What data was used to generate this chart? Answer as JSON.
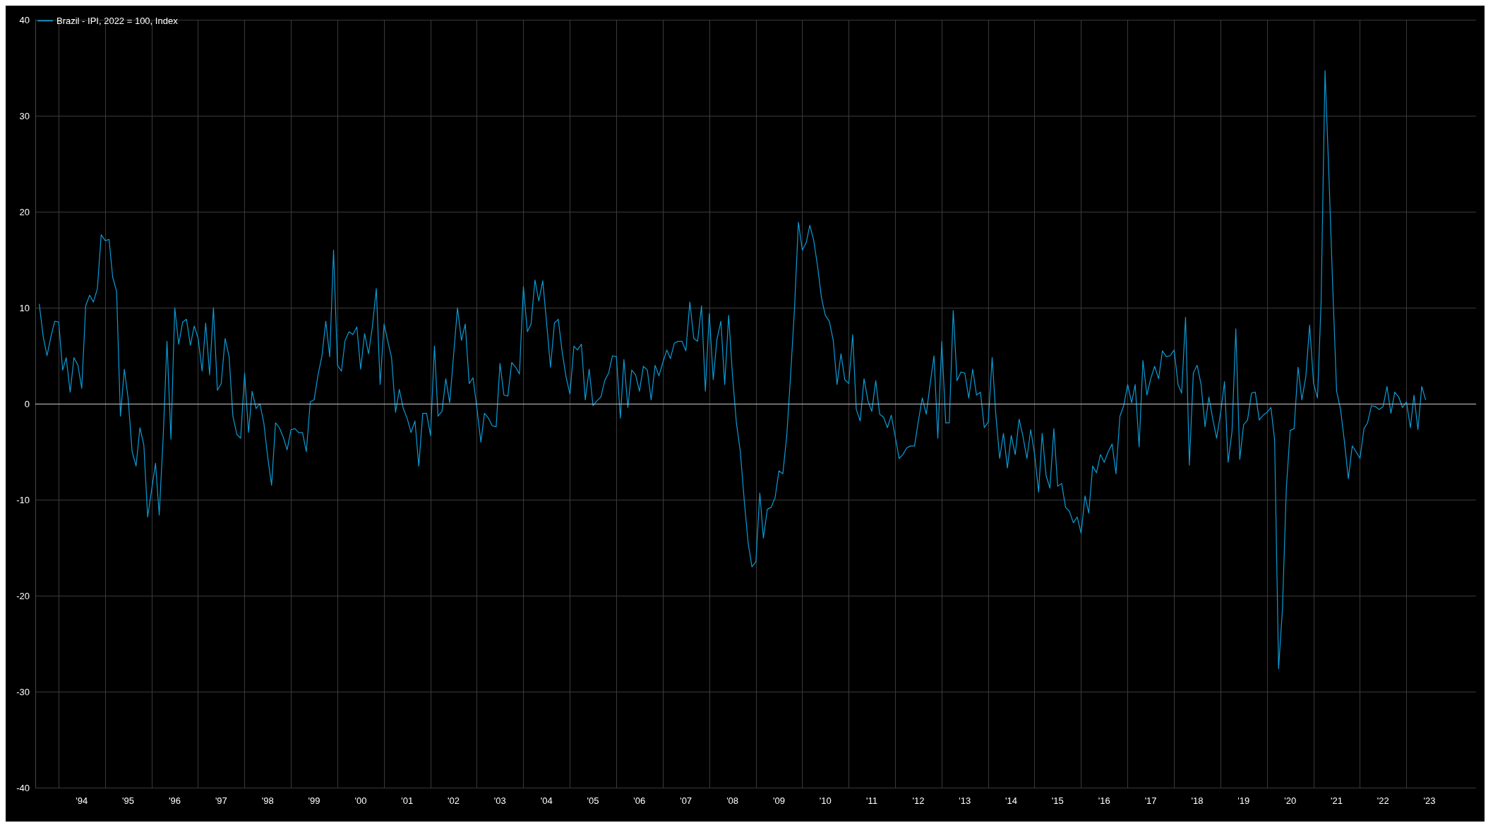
{
  "chart_data": {
    "type": "line",
    "xlim": [
      "1993-07",
      "2024-07"
    ],
    "ylim": [
      -40,
      40
    ],
    "yticks": [
      -40,
      -30,
      -20,
      -10,
      0,
      10,
      20,
      30,
      40
    ],
    "xticks": [
      {
        "value": "1994-01",
        "label": null
      },
      {
        "value": "1994-07",
        "label": "'94"
      },
      {
        "value": "1995-01",
        "label": null
      },
      {
        "value": "1995-07",
        "label": "'95"
      },
      {
        "value": "1996-01",
        "label": null
      },
      {
        "value": "1996-07",
        "label": "'96"
      },
      {
        "value": "1997-01",
        "label": null
      },
      {
        "value": "1997-07",
        "label": "'97"
      },
      {
        "value": "1998-01",
        "label": null
      },
      {
        "value": "1998-07",
        "label": "'98"
      },
      {
        "value": "1999-01",
        "label": null
      },
      {
        "value": "1999-07",
        "label": "'99"
      },
      {
        "value": "2000-01",
        "label": null
      },
      {
        "value": "2000-07",
        "label": "'00"
      },
      {
        "value": "2001-01",
        "label": null
      },
      {
        "value": "2001-07",
        "label": "'01"
      },
      {
        "value": "2002-01",
        "label": null
      },
      {
        "value": "2002-07",
        "label": "'02"
      },
      {
        "value": "2003-01",
        "label": null
      },
      {
        "value": "2003-07",
        "label": "'03"
      },
      {
        "value": "2004-01",
        "label": null
      },
      {
        "value": "2004-07",
        "label": "'04"
      },
      {
        "value": "2005-01",
        "label": null
      },
      {
        "value": "2005-07",
        "label": "'05"
      },
      {
        "value": "2006-01",
        "label": null
      },
      {
        "value": "2006-07",
        "label": "'06"
      },
      {
        "value": "2007-01",
        "label": null
      },
      {
        "value": "2007-07",
        "label": "'07"
      },
      {
        "value": "2008-01",
        "label": null
      },
      {
        "value": "2008-07",
        "label": "'08"
      },
      {
        "value": "2009-01",
        "label": null
      },
      {
        "value": "2009-07",
        "label": "'09"
      },
      {
        "value": "2010-01",
        "label": null
      },
      {
        "value": "2010-07",
        "label": "'10"
      },
      {
        "value": "2011-01",
        "label": null
      },
      {
        "value": "2011-07",
        "label": "'11"
      },
      {
        "value": "2012-01",
        "label": null
      },
      {
        "value": "2012-07",
        "label": "'12"
      },
      {
        "value": "2013-01",
        "label": null
      },
      {
        "value": "2013-07",
        "label": "'13"
      },
      {
        "value": "2014-01",
        "label": null
      },
      {
        "value": "2014-07",
        "label": "'14"
      },
      {
        "value": "2015-01",
        "label": null
      },
      {
        "value": "2015-07",
        "label": "'15"
      },
      {
        "value": "2016-01",
        "label": null
      },
      {
        "value": "2016-07",
        "label": "'16"
      },
      {
        "value": "2017-01",
        "label": null
      },
      {
        "value": "2017-07",
        "label": "'17"
      },
      {
        "value": "2018-01",
        "label": null
      },
      {
        "value": "2018-07",
        "label": "'18"
      },
      {
        "value": "2019-01",
        "label": null
      },
      {
        "value": "2019-07",
        "label": "'19"
      },
      {
        "value": "2020-01",
        "label": null
      },
      {
        "value": "2020-07",
        "label": "'20"
      },
      {
        "value": "2021-01",
        "label": null
      },
      {
        "value": "2021-07",
        "label": "'21"
      },
      {
        "value": "2022-01",
        "label": null
      },
      {
        "value": "2022-07",
        "label": "'22"
      },
      {
        "value": "2023-01",
        "label": null
      },
      {
        "value": "2023-07",
        "label": "'23"
      }
    ],
    "ref_lines": [
      {
        "axis": "y",
        "value": 0,
        "label": null,
        "color": "#c8c8c8"
      }
    ],
    "grid": true,
    "legend": "top left",
    "marker": "none",
    "line_style": "solid",
    "x": [
      "1993-08",
      "1993-09",
      "1993-10",
      "1993-11",
      "1993-12",
      "1994-01",
      "1994-02",
      "1994-03",
      "1994-04",
      "1994-05",
      "1994-06",
      "1994-07",
      "1994-08",
      "1994-09",
      "1994-10",
      "1994-11",
      "1994-12",
      "1995-01",
      "1995-02",
      "1995-03",
      "1995-04",
      "1995-05",
      "1995-06",
      "1995-07",
      "1995-08",
      "1995-09",
      "1995-10",
      "1995-11",
      "1995-12",
      "1996-01",
      "1996-02",
      "1996-03",
      "1996-04",
      "1996-05",
      "1996-06",
      "1996-07",
      "1996-08",
      "1996-09",
      "1996-10",
      "1996-11",
      "1996-12",
      "1997-01",
      "1997-02",
      "1997-03",
      "1997-04",
      "1997-05",
      "1997-06",
      "1997-07",
      "1997-08",
      "1997-09",
      "1997-10",
      "1997-11",
      "1997-12",
      "1998-01",
      "1998-02",
      "1998-03",
      "1998-04",
      "1998-05",
      "1998-06",
      "1998-07",
      "1998-08",
      "1998-09",
      "1998-10",
      "1998-11",
      "1998-12",
      "1999-01",
      "1999-02",
      "1999-03",
      "1999-04",
      "1999-05",
      "1999-06",
      "1999-07",
      "1999-08",
      "1999-09",
      "1999-10",
      "1999-11",
      "1999-12",
      "2000-01",
      "2000-02",
      "2000-03",
      "2000-04",
      "2000-05",
      "2000-06",
      "2000-07",
      "2000-08",
      "2000-09",
      "2000-10",
      "2000-11",
      "2000-12",
      "2001-01",
      "2001-02",
      "2001-03",
      "2001-04",
      "2001-05",
      "2001-06",
      "2001-07",
      "2001-08",
      "2001-09",
      "2001-10",
      "2001-11",
      "2001-12",
      "2002-01",
      "2002-02",
      "2002-03",
      "2002-04",
      "2002-05",
      "2002-06",
      "2002-07",
      "2002-08",
      "2002-09",
      "2002-10",
      "2002-11",
      "2002-12",
      "2003-01",
      "2003-02",
      "2003-03",
      "2003-04",
      "2003-05",
      "2003-06",
      "2003-07",
      "2003-08",
      "2003-09",
      "2003-10",
      "2003-11",
      "2003-12",
      "2004-01",
      "2004-02",
      "2004-03",
      "2004-04",
      "2004-05",
      "2004-06",
      "2004-07",
      "2004-08",
      "2004-09",
      "2004-10",
      "2004-11",
      "2004-12",
      "2005-01",
      "2005-02",
      "2005-03",
      "2005-04",
      "2005-05",
      "2005-06",
      "2005-07",
      "2005-08",
      "2005-09",
      "2005-10",
      "2005-11",
      "2005-12",
      "2006-01",
      "2006-02",
      "2006-03",
      "2006-04",
      "2006-05",
      "2006-06",
      "2006-07",
      "2006-08",
      "2006-09",
      "2006-10",
      "2006-11",
      "2006-12",
      "2007-01",
      "2007-02",
      "2007-03",
      "2007-04",
      "2007-05",
      "2007-06",
      "2007-07",
      "2007-08",
      "2007-09",
      "2007-10",
      "2007-11",
      "2007-12",
      "2008-01",
      "2008-02",
      "2008-03",
      "2008-04",
      "2008-05",
      "2008-06",
      "2008-07",
      "2008-08",
      "2008-09",
      "2008-10",
      "2008-11",
      "2008-12",
      "2009-01",
      "2009-02",
      "2009-03",
      "2009-04",
      "2009-05",
      "2009-06",
      "2009-07",
      "2009-08",
      "2009-09",
      "2009-10",
      "2009-11",
      "2009-12",
      "2010-01",
      "2010-02",
      "2010-03",
      "2010-04",
      "2010-05",
      "2010-06",
      "2010-07",
      "2010-08",
      "2010-09",
      "2010-10",
      "2010-11",
      "2010-12",
      "2011-01",
      "2011-02",
      "2011-03",
      "2011-04",
      "2011-05",
      "2011-06",
      "2011-07",
      "2011-08",
      "2011-09",
      "2011-10",
      "2011-11",
      "2011-12",
      "2012-01",
      "2012-02",
      "2012-03",
      "2012-04",
      "2012-05",
      "2012-06",
      "2012-07",
      "2012-08",
      "2012-09",
      "2012-10",
      "2012-11",
      "2012-12",
      "2013-01",
      "2013-02",
      "2013-03",
      "2013-04",
      "2013-05",
      "2013-06",
      "2013-07",
      "2013-08",
      "2013-09",
      "2013-10",
      "2013-11",
      "2013-12",
      "2014-01",
      "2014-02",
      "2014-03",
      "2014-04",
      "2014-05",
      "2014-06",
      "2014-07",
      "2014-08",
      "2014-09",
      "2014-10",
      "2014-11",
      "2014-12",
      "2015-01",
      "2015-02",
      "2015-03",
      "2015-04",
      "2015-05",
      "2015-06",
      "2015-07",
      "2015-08",
      "2015-09",
      "2015-10",
      "2015-11",
      "2015-12",
      "2016-01",
      "2016-02",
      "2016-03",
      "2016-04",
      "2016-05",
      "2016-06",
      "2016-07",
      "2016-08",
      "2016-09",
      "2016-10",
      "2016-11",
      "2016-12",
      "2017-01",
      "2017-02",
      "2017-03",
      "2017-04",
      "2017-05",
      "2017-06",
      "2017-07",
      "2017-08",
      "2017-09",
      "2017-10",
      "2017-11",
      "2017-12",
      "2018-01",
      "2018-02",
      "2018-03",
      "2018-04",
      "2018-05",
      "2018-06",
      "2018-07",
      "2018-08",
      "2018-09",
      "2018-10",
      "2018-11",
      "2018-12",
      "2019-01",
      "2019-02",
      "2019-03",
      "2019-04",
      "2019-05",
      "2019-06",
      "2019-07",
      "2019-08",
      "2019-09",
      "2019-10",
      "2019-11",
      "2019-12",
      "2020-01",
      "2020-02",
      "2020-03",
      "2020-04",
      "2020-05",
      "2020-06",
      "2020-07",
      "2020-08",
      "2020-09",
      "2020-10",
      "2020-11",
      "2020-12",
      "2021-01",
      "2021-02",
      "2021-03",
      "2021-04",
      "2021-05",
      "2021-06",
      "2021-07",
      "2021-08",
      "2021-09",
      "2021-10",
      "2021-11",
      "2021-12",
      "2022-01",
      "2022-02",
      "2022-03",
      "2022-04",
      "2022-05",
      "2022-06",
      "2022-07",
      "2022-08",
      "2022-09",
      "2022-10",
      "2022-11",
      "2022-12",
      "2023-01",
      "2023-02",
      "2023-03",
      "2023-04",
      "2023-05",
      "2023-06"
    ],
    "series": [
      {
        "name": "Brazil - IPI, 2022 = 100, Index",
        "color": "#0b9bd6",
        "values": [
          10.4,
          7,
          5,
          7,
          8.6,
          8.5,
          3.5,
          4.8,
          1.2,
          4.8,
          4,
          1.6,
          10.2,
          11.3,
          10.6,
          12,
          17.6,
          17,
          17.1,
          13.2,
          11.7,
          -1.3,
          3.6,
          0.5,
          -5,
          -6.5,
          -2.5,
          -4.3,
          -11.8,
          -9,
          -6.2,
          -11.6,
          -3.5,
          6.5,
          -3.7,
          10,
          6.2,
          8.5,
          8.8,
          6.1,
          8.1,
          6.8,
          3.4,
          8.4,
          3,
          10,
          1.4,
          2.1,
          6.8,
          4.9,
          -1.3,
          -3.2,
          -3.6,
          3.2,
          -3,
          1.3,
          -0.5,
          0,
          -2,
          -5.5,
          -8.5,
          -2,
          -2.5,
          -3.5,
          -4.8,
          -2.7,
          -2.6,
          -3,
          -3,
          -5,
          0.2,
          0.4,
          3,
          5,
          8.6,
          4.9,
          16,
          4,
          3.4,
          6.6,
          7.5,
          7.2,
          8,
          3.6,
          7.3,
          5.2,
          8,
          12,
          2,
          8.3,
          6.4,
          4.8,
          -0.9,
          1.5,
          -0.5,
          -1.5,
          -3,
          -1.8,
          -6.5,
          -1,
          -1,
          -3.3,
          6,
          -1.3,
          -0.8,
          2.6,
          0.1,
          5,
          10,
          6.6,
          8.3,
          2.1,
          2.7,
          -0.5,
          -4,
          -1,
          -1.5,
          -2.3,
          -2.4,
          4.2,
          0.9,
          0.8,
          4.3,
          3.8,
          3.1,
          12.2,
          7.5,
          8.3,
          12.9,
          10.7,
          12.8,
          8.5,
          3.8,
          8.4,
          8.8,
          5.4,
          2.8,
          1,
          6,
          5.6,
          6.2,
          0.4,
          3.6,
          -0.2,
          0.3,
          0.7,
          2.4,
          3.2,
          5,
          4.9,
          -1.5,
          4.6,
          -0.4,
          3.5,
          3,
          1.3,
          3.9,
          3.5,
          0.4,
          4,
          2.9,
          4.3,
          5.6,
          4.7,
          6.3,
          6.5,
          6.5,
          5.5,
          10.6,
          6.8,
          6.5,
          10.2,
          1.3,
          9.4,
          2.5,
          6.7,
          8.6,
          2,
          9.2,
          3,
          -2,
          -5,
          -10,
          -14.5,
          -17,
          -16.5,
          -9.3,
          -14,
          -11,
          -10.8,
          -9.8,
          -7,
          -7.3,
          -3.3,
          3,
          10,
          18.9,
          16,
          16.8,
          18.6,
          17,
          14.3,
          11,
          9.2,
          8.6,
          6.6,
          2,
          5.2,
          2.5,
          2.1,
          7.2,
          -0.6,
          -1.8,
          2.6,
          0.3,
          -0.8,
          2.4,
          -1.1,
          -1.4,
          -2.5,
          -1.2,
          -3.4,
          -5.7,
          -5.3,
          -4.6,
          -4.4,
          -4.4,
          -1.8,
          0.6,
          -1.1,
          2,
          5,
          -3.6,
          6.5,
          -2,
          -2,
          9.7,
          2.4,
          3.3,
          3.2,
          0.6,
          3.6,
          0.9,
          1.2,
          -2.5,
          -1.9,
          4.8,
          -1,
          -5.7,
          -3.1,
          -6.7,
          -3.3,
          -5.3,
          -1.6,
          -3.4,
          -5.7,
          -2.7,
          -5.3,
          -9.2,
          -3.1,
          -7.5,
          -8.8,
          -2.6,
          -8.6,
          -8.3,
          -10.8,
          -11.2,
          -12.4,
          -11.8,
          -13.5,
          -9.6,
          -11.4,
          -6.5,
          -7.2,
          -5.3,
          -6.1,
          -5,
          -4.2,
          -7.3,
          -1.3,
          -0.2,
          2,
          0.1,
          2,
          -4.5,
          4.5,
          0.9,
          2.6,
          3.9,
          2.6,
          5.5,
          4.9,
          5,
          5.6,
          2,
          1.1,
          9,
          -6.4,
          3.2,
          4,
          2,
          -2.4,
          0.7,
          -1.6,
          -3.6,
          -1,
          2.3,
          -6.1,
          -2.9,
          7.8,
          -5.8,
          -2.2,
          -1.7,
          1.1,
          1.2,
          -1.7,
          -1.2,
          -0.9,
          -0.4,
          -3.8,
          -27.6,
          -21.5,
          -8.8,
          -2.8,
          -2.6,
          3.8,
          0.4,
          2.8,
          8.2,
          2.1,
          0.6,
          10.5,
          34.7,
          24,
          12,
          1.3,
          -0.6,
          -4,
          -7.8,
          -4.4,
          -5,
          -5.7,
          -2.6,
          -2,
          -0.2,
          -0.3,
          -0.6,
          -0.3,
          1.8,
          -1,
          1.2,
          0.7,
          -0.4,
          0.2,
          -2.5,
          0.9,
          -2.7,
          1.8,
          0.4
        ]
      }
    ]
  }
}
